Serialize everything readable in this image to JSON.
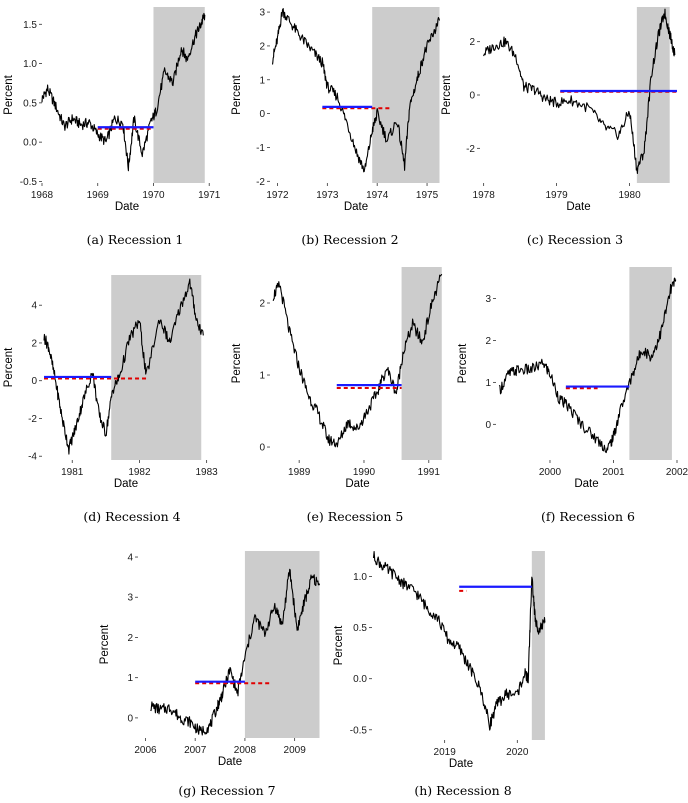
{
  "chart_data": [
    {
      "type": "line",
      "caption": "(a) Recession 1",
      "xlabel": "Date",
      "ylabel": "Percent",
      "xlim": [
        1968.0,
        1971.05
      ],
      "ylim": [
        -0.52,
        1.72
      ],
      "xticks": [
        1968,
        1969,
        1970,
        1971
      ],
      "xtick_labels": [
        "1968",
        "1969",
        "1970",
        "1971"
      ],
      "yticks": [
        -0.5,
        0.0,
        0.5,
        1.0,
        1.5
      ],
      "ytick_labels": [
        "-0.5",
        "0.0",
        "0.5",
        "1.0",
        "1.5"
      ],
      "recession_shading": [
        1970.0,
        1970.92
      ],
      "blue_line": {
        "x": [
          1969.0,
          1970.0
        ],
        "y": 0.19
      },
      "red_dashed": {
        "x": [
          1969.0,
          1970.0
        ],
        "y": 0.17
      },
      "series": [
        {
          "x": [
            1968.0,
            1968.1,
            1968.25,
            1968.4,
            1968.55,
            1968.7,
            1968.85,
            1969.0,
            1969.15,
            1969.3,
            1969.45,
            1969.55,
            1969.65,
            1969.8,
            1969.95,
            1970.05,
            1970.2,
            1970.35,
            1970.5,
            1970.6,
            1970.75,
            1970.85,
            1970.92
          ],
          "y": [
            0.55,
            0.68,
            0.45,
            0.2,
            0.3,
            0.22,
            0.25,
            0.1,
            0.0,
            0.3,
            0.25,
            -0.32,
            0.3,
            -0.15,
            0.25,
            0.4,
            0.9,
            0.75,
            1.2,
            1.05,
            1.35,
            1.5,
            1.62
          ]
        }
      ]
    },
    {
      "type": "line",
      "caption": "(b) Recession 2",
      "xlabel": "Date",
      "ylabel": "Percent",
      "xlim": [
        1971.85,
        1975.3
      ],
      "ylim": [
        -2.05,
        3.15
      ],
      "xticks": [
        1972,
        1973,
        1974,
        1975
      ],
      "xtick_labels": [
        "1972",
        "1973",
        "1974",
        "1975"
      ],
      "yticks": [
        -2,
        -1,
        0,
        1,
        2,
        3
      ],
      "ytick_labels": [
        "-2",
        "-1",
        "0",
        "1",
        "2",
        "3"
      ],
      "recession_shading": [
        1973.9,
        1975.25
      ],
      "blue_line": {
        "x": [
          1972.9,
          1973.9
        ],
        "y": 0.2
      },
      "red_dashed": {
        "x": [
          1972.9,
          1974.3
        ],
        "y": 0.16
      },
      "series": [
        {
          "x": [
            1971.9,
            1972.0,
            1972.1,
            1972.3,
            1972.5,
            1972.7,
            1972.9,
            1973.0,
            1973.2,
            1973.4,
            1973.6,
            1973.75,
            1973.9,
            1974.0,
            1974.2,
            1974.4,
            1974.55,
            1974.65,
            1974.8,
            1974.95,
            1975.1,
            1975.25
          ],
          "y": [
            1.6,
            2.2,
            3.05,
            2.6,
            2.2,
            1.85,
            1.5,
            0.8,
            0.5,
            -0.3,
            -1.2,
            -1.7,
            -0.5,
            0.0,
            -0.8,
            -0.2,
            -1.55,
            0.2,
            1.0,
            1.8,
            2.3,
            2.75
          ]
        }
      ]
    },
    {
      "type": "line",
      "caption": "(c) Recession 3",
      "xlabel": "Date",
      "ylabel": "Percent",
      "xlim": [
        1977.95,
        1980.65
      ],
      "ylim": [
        -3.3,
        3.3
      ],
      "xticks": [
        1978,
        1979,
        1980
      ],
      "xtick_labels": [
        "1978",
        "1979",
        "1980"
      ],
      "yticks": [
        -2,
        0,
        2
      ],
      "ytick_labels": [
        "-2",
        "0",
        "2"
      ],
      "recession_shading": [
        1980.1,
        1980.55
      ],
      "blue_line": {
        "x": [
          1979.05,
          1980.65
        ],
        "y": 0.15
      },
      "red_dashed": {
        "x": [
          1979.05,
          1980.65
        ],
        "y": 0.12
      },
      "series": [
        {
          "x": [
            1978.0,
            1978.15,
            1978.3,
            1978.45,
            1978.55,
            1978.7,
            1978.85,
            1979.0,
            1979.2,
            1979.45,
            1979.65,
            1979.85,
            1980.0,
            1980.1,
            1980.2,
            1980.3,
            1980.4,
            1980.48,
            1980.55,
            1980.62
          ],
          "y": [
            1.55,
            1.85,
            2.0,
            1.4,
            0.3,
            0.2,
            -0.15,
            -0.3,
            -0.2,
            -0.5,
            -1.2,
            -1.5,
            -0.6,
            -2.8,
            -2.1,
            0.8,
            2.3,
            3.1,
            2.3,
            1.5
          ]
        }
      ]
    },
    {
      "type": "line",
      "caption": "(d) Recession 4",
      "xlabel": "Date",
      "ylabel": "Percent",
      "xlim": [
        1980.55,
        1983.05
      ],
      "ylim": [
        -4.2,
        5.6
      ],
      "xticks": [
        1981,
        1982,
        1983
      ],
      "xtick_labels": [
        "1981",
        "1982",
        "1983"
      ],
      "yticks": [
        -4,
        -2,
        0,
        2,
        4
      ],
      "ytick_labels": [
        "-4",
        "-2",
        "0",
        "2",
        "4"
      ],
      "recession_shading": [
        1981.58,
        1982.92
      ],
      "blue_line": {
        "x": [
          1980.58,
          1981.58
        ],
        "y": 0.2
      },
      "red_dashed": {
        "x": [
          1980.58,
          1982.1
        ],
        "y": 0.12
      },
      "series": [
        {
          "x": [
            1980.58,
            1980.65,
            1980.75,
            1980.85,
            1980.95,
            1981.05,
            1981.15,
            1981.3,
            1981.4,
            1981.5,
            1981.6,
            1981.7,
            1981.85,
            1982.0,
            1982.1,
            1982.3,
            1982.45,
            1982.6,
            1982.75,
            1982.85,
            1982.95
          ],
          "y": [
            2.3,
            1.8,
            0.0,
            -2.0,
            -3.6,
            -2.5,
            -1.2,
            0.5,
            -1.8,
            -2.8,
            -0.5,
            0.2,
            2.2,
            3.2,
            0.2,
            3.3,
            2.0,
            3.8,
            5.2,
            3.2,
            2.4
          ]
        }
      ]
    },
    {
      "type": "line",
      "caption": "(e) Recession 5",
      "xlabel": "Date",
      "ylabel": "Percent",
      "xlim": [
        1988.55,
        1991.25
      ],
      "ylim": [
        -0.18,
        2.5
      ],
      "xticks": [
        1989,
        1990,
        1991
      ],
      "xtick_labels": [
        "1989",
        "1990",
        "1991"
      ],
      "yticks": [
        0,
        1,
        2
      ],
      "ytick_labels": [
        "0",
        "1",
        "2"
      ],
      "recession_shading": [
        1990.58,
        1991.2
      ],
      "blue_line": {
        "x": [
          1989.58,
          1990.58
        ],
        "y": 0.86
      },
      "red_dashed": {
        "x": [
          1989.58,
          1990.58
        ],
        "y": 0.82
      },
      "series": [
        {
          "x": [
            1988.6,
            1988.7,
            1988.85,
            1989.0,
            1989.15,
            1989.3,
            1989.45,
            1989.6,
            1989.75,
            1989.9,
            1990.05,
            1990.2,
            1990.35,
            1990.5,
            1990.6,
            1990.75,
            1990.9,
            1991.05,
            1991.2
          ],
          "y": [
            2.1,
            2.25,
            1.6,
            1.1,
            0.7,
            0.45,
            0.1,
            0.05,
            0.35,
            0.25,
            0.5,
            0.75,
            1.1,
            0.75,
            1.3,
            1.7,
            1.45,
            2.0,
            2.4
          ]
        }
      ]
    },
    {
      "type": "line",
      "caption": "(f) Recession 6",
      "xlabel": "Date",
      "ylabel": "Percent",
      "xlim": [
        1999.15,
        2002.0
      ],
      "ylim": [
        -0.85,
        3.75
      ],
      "xticks": [
        2000,
        2001,
        2002
      ],
      "xtick_labels": [
        "2000",
        "2001",
        "2002"
      ],
      "yticks": [
        0,
        1,
        2,
        3
      ],
      "ytick_labels": [
        "0",
        "1",
        "2",
        "3"
      ],
      "recession_shading": [
        2001.25,
        2001.92
      ],
      "blue_line": {
        "x": [
          2000.25,
          2001.25
        ],
        "y": 0.9
      },
      "red_dashed": {
        "x": [
          2000.25,
          2000.75
        ],
        "y": 0.86
      },
      "series": [
        {
          "x": [
            1999.2,
            1999.35,
            1999.5,
            1999.7,
            1999.9,
            2000.0,
            2000.15,
            2000.3,
            2000.5,
            2000.7,
            2000.9,
            2001.0,
            2001.1,
            2001.3,
            2001.45,
            2001.6,
            2001.75,
            2001.9,
            2001.98
          ],
          "y": [
            0.8,
            1.2,
            1.3,
            1.3,
            1.45,
            1.2,
            0.6,
            0.4,
            0.0,
            -0.3,
            -0.6,
            -0.3,
            0.3,
            1.2,
            1.8,
            1.6,
            2.2,
            3.2,
            3.45
          ]
        }
      ]
    },
    {
      "type": "line",
      "caption": "(g) Recession 7",
      "xlabel": "Date",
      "ylabel": "Percent",
      "xlim": [
        2005.85,
        2009.55
      ],
      "ylim": [
        -0.5,
        4.15
      ],
      "xticks": [
        2006,
        2007,
        2008,
        2009
      ],
      "xtick_labels": [
        "2006",
        "2007",
        "2008",
        "2009"
      ],
      "yticks": [
        0,
        1,
        2,
        3,
        4
      ],
      "ytick_labels": [
        "0",
        "1",
        "2",
        "3",
        "4"
      ],
      "recession_shading": [
        2008.0,
        2009.5
      ],
      "blue_line": {
        "x": [
          2007.0,
          2008.0
        ],
        "y": 0.9
      },
      "red_dashed": {
        "x": [
          2007.0,
          2008.5
        ],
        "y": 0.86
      },
      "series": [
        {
          "x": [
            2006.1,
            2006.3,
            2006.5,
            2006.7,
            2006.9,
            2007.1,
            2007.3,
            2007.45,
            2007.55,
            2007.7,
            2007.85,
            2008.0,
            2008.2,
            2008.4,
            2008.6,
            2008.75,
            2008.9,
            2009.05,
            2009.2,
            2009.35,
            2009.5
          ],
          "y": [
            0.3,
            0.2,
            0.25,
            0.0,
            -0.1,
            -0.35,
            -0.2,
            0.3,
            0.6,
            1.2,
            0.6,
            1.5,
            2.5,
            2.1,
            2.8,
            2.3,
            3.7,
            2.2,
            2.9,
            3.5,
            3.3
          ]
        }
      ]
    },
    {
      "type": "line",
      "caption": "(h) Recession 8",
      "xlabel": "Date",
      "ylabel": "Percent",
      "xlim": [
        2018.0,
        2020.45
      ],
      "ylim": [
        -0.6,
        1.25
      ],
      "xticks": [
        2019,
        2020
      ],
      "xtick_labels": [
        "2019",
        "2020"
      ],
      "yticks": [
        -0.5,
        0.0,
        0.5,
        1.0
      ],
      "ytick_labels": [
        "-0.5",
        "0.0",
        "0.5",
        "1.0"
      ],
      "recession_shading": [
        2020.2,
        2020.38
      ],
      "blue_line": {
        "x": [
          2019.2,
          2020.2
        ],
        "y": 0.9
      },
      "red_dashed": {
        "x": [
          2019.2,
          2019.3
        ],
        "y": 0.86
      },
      "series": [
        {
          "x": [
            2018.02,
            2018.15,
            2018.3,
            2018.45,
            2018.6,
            2018.75,
            2018.9,
            2019.05,
            2019.2,
            2019.35,
            2019.5,
            2019.62,
            2019.72,
            2019.85,
            2020.0,
            2020.1,
            2020.15,
            2020.2,
            2020.25,
            2020.3,
            2020.38
          ],
          "y": [
            1.2,
            1.1,
            1.02,
            0.92,
            0.85,
            0.7,
            0.6,
            0.38,
            0.3,
            0.1,
            -0.12,
            -0.45,
            -0.25,
            -0.15,
            -0.15,
            0.05,
            0.0,
            1.0,
            0.55,
            0.48,
            0.55
          ]
        }
      ]
    }
  ]
}
